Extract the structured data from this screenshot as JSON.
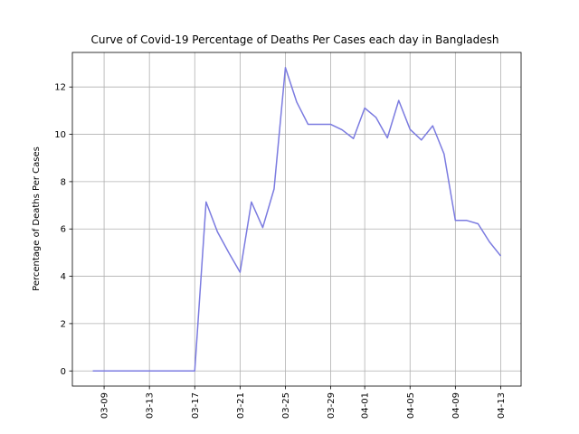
{
  "chart_data": {
    "type": "line",
    "title": "Curve of Covid-19 Percentage of Deaths Per Cases each day in Bangladesh",
    "xlabel": "",
    "ylabel": "Percentage of Deaths Per Cases",
    "x": [
      "03-08",
      "03-09",
      "03-10",
      "03-11",
      "03-12",
      "03-13",
      "03-14",
      "03-15",
      "03-16",
      "03-17",
      "03-18",
      "03-19",
      "03-20",
      "03-21",
      "03-22",
      "03-23",
      "03-24",
      "03-25",
      "03-26",
      "03-27",
      "03-28",
      "03-29",
      "03-30",
      "03-31",
      "04-01",
      "04-02",
      "04-03",
      "04-04",
      "04-05",
      "04-06",
      "04-07",
      "04-08",
      "04-09",
      "04-10",
      "04-11",
      "04-12",
      "04-13"
    ],
    "series": [
      {
        "values": [
          0,
          0,
          0,
          0,
          0,
          0,
          0,
          0,
          0,
          0,
          7.14,
          5.88,
          5.0,
          4.17,
          7.14,
          6.06,
          7.69,
          12.82,
          11.36,
          10.42,
          10.42,
          10.42,
          10.19,
          9.82,
          11.11,
          10.71,
          9.85,
          11.43,
          10.21,
          9.76,
          10.36,
          9.17,
          6.36,
          6.36,
          6.22,
          5.46,
          4.86
        ],
        "color": "#7b7be0"
      }
    ],
    "xticks": [
      "03-09",
      "03-13",
      "03-17",
      "03-21",
      "03-25",
      "03-29",
      "04-01",
      "04-05",
      "04-09",
      "04-13"
    ],
    "yticks": [
      "0",
      "2",
      "4",
      "6",
      "8",
      "10",
      "12"
    ],
    "ylim": [
      -0.64,
      13.46
    ],
    "grid": true,
    "legend": "none"
  }
}
